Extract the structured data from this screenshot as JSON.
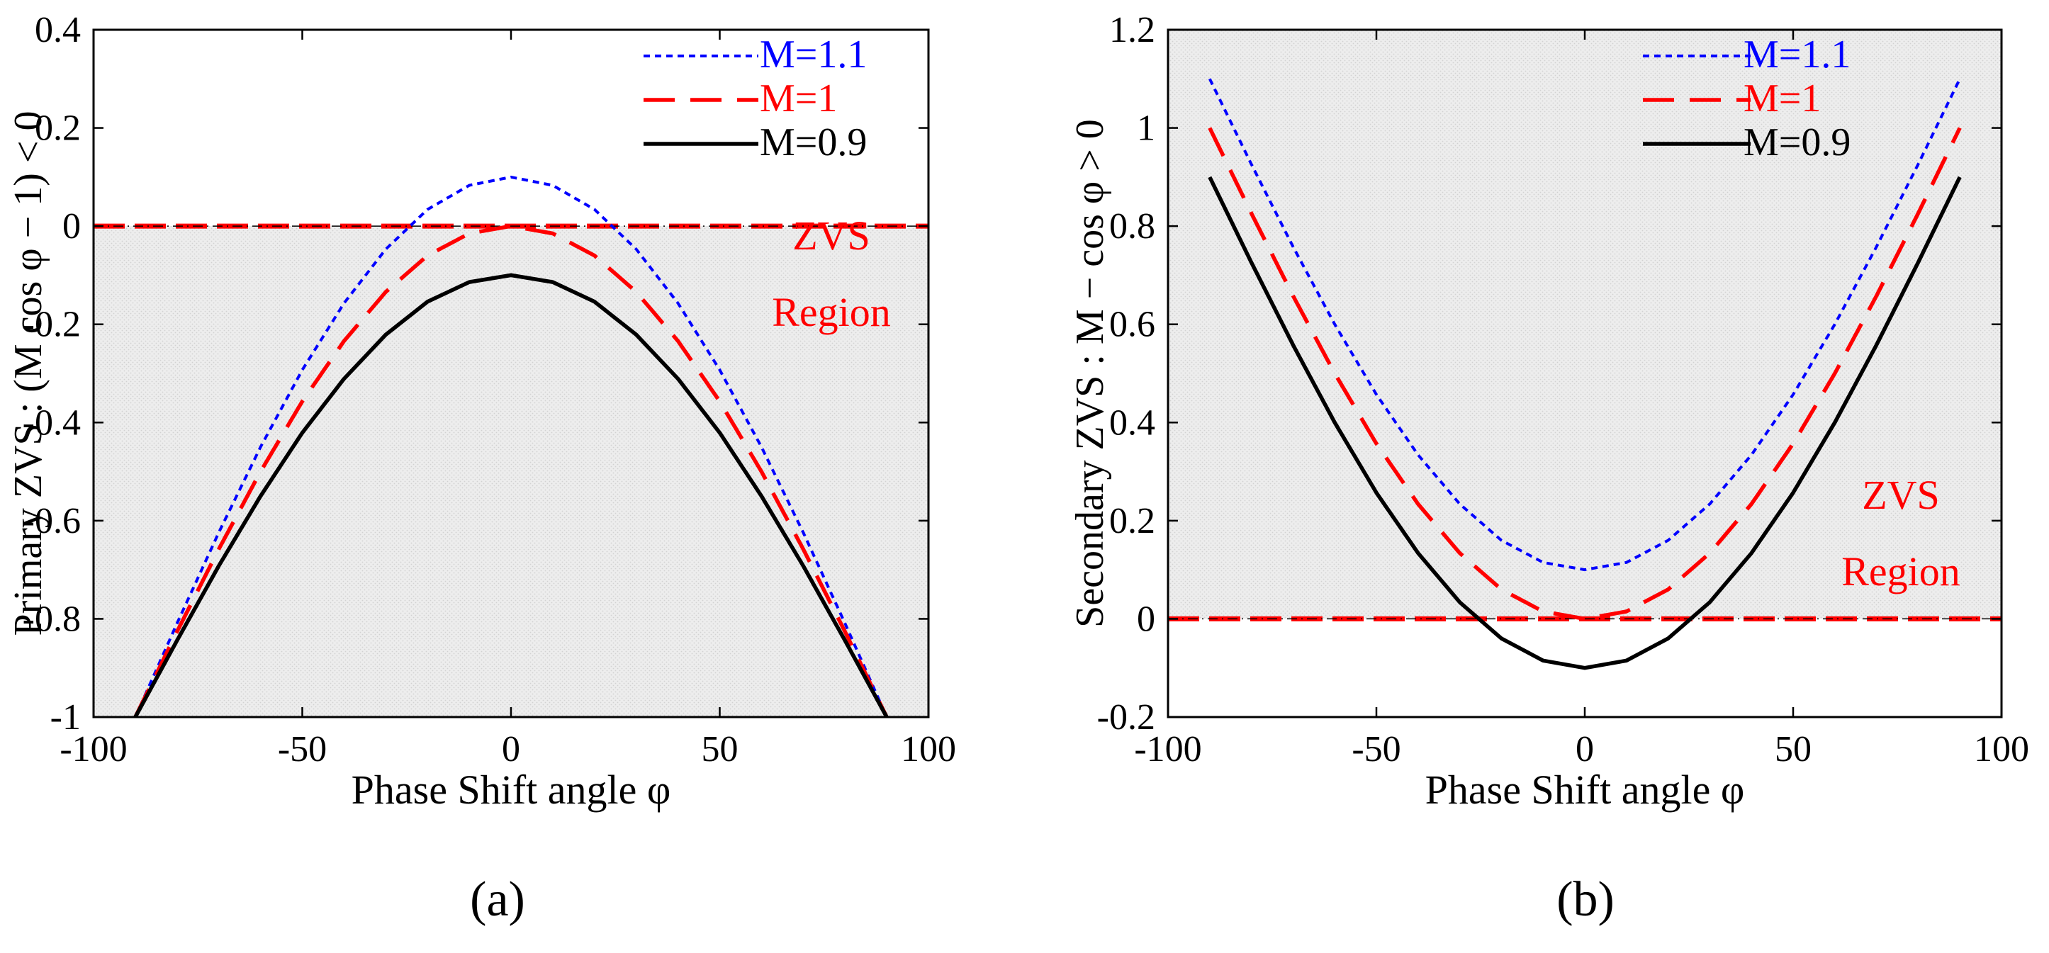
{
  "colors": {
    "m11": "#0000ff",
    "m1": "#ff0000",
    "m09": "#000000",
    "zvs_text": "#ff0000",
    "region_fill": "#e6e6e6",
    "axis": "#000000"
  },
  "chart_data": [
    {
      "panel": "a",
      "type": "line",
      "panel_label": "(a)",
      "title": "",
      "xlabel": "Phase Shift angle φ",
      "ylabel": "Primary ZVS : (M cos φ − 1) < 0",
      "xlim": [
        -100,
        100
      ],
      "ylim": [
        -1,
        0.4
      ],
      "xticks": [
        -100,
        -50,
        0,
        50,
        100
      ],
      "xtick_labels": [
        "-100",
        "-50",
        "0",
        "50",
        "100"
      ],
      "yticks": [
        -1,
        -0.8,
        -0.6,
        -0.4,
        -0.2,
        0,
        0.2,
        0.4
      ],
      "ytick_labels": [
        "-1",
        "-0.8",
        "-0.6",
        "-0.4",
        "-0.2",
        "0",
        "0.2",
        "0.4"
      ],
      "x": [
        -90,
        -80,
        -70,
        -60,
        -50,
        -40,
        -30,
        -20,
        -10,
        0,
        10,
        20,
        30,
        40,
        50,
        60,
        70,
        80,
        90
      ],
      "series": [
        {
          "name": "M=1.1",
          "color": "#0000ff",
          "style": "dotted",
          "values": [
            -1.0,
            -0.809,
            -0.624,
            -0.45,
            -0.293,
            -0.157,
            -0.047,
            0.034,
            0.083,
            0.1,
            0.083,
            0.034,
            -0.047,
            -0.157,
            -0.293,
            -0.45,
            -0.624,
            -0.809,
            -1.0
          ]
        },
        {
          "name": "M=1",
          "color": "#ff0000",
          "style": "dashed",
          "values": [
            -1.0,
            -0.826,
            -0.658,
            -0.5,
            -0.357,
            -0.234,
            -0.134,
            -0.06,
            -0.015,
            0.0,
            -0.015,
            -0.06,
            -0.134,
            -0.234,
            -0.357,
            -0.5,
            -0.658,
            -0.826,
            -1.0
          ]
        },
        {
          "name": "M=0.9",
          "color": "#000000",
          "style": "solid",
          "values": [
            -1.0,
            -0.844,
            -0.692,
            -0.55,
            -0.421,
            -0.311,
            -0.221,
            -0.154,
            -0.114,
            -0.1,
            -0.114,
            -0.154,
            -0.221,
            -0.311,
            -0.421,
            -0.55,
            -0.692,
            -0.844,
            -1.0
          ]
        }
      ],
      "boundary": {
        "y": 0,
        "color": "#ff0000",
        "style": "dash-dot"
      },
      "shaded_region": {
        "from": -1,
        "to": 0,
        "label": [
          "ZVS",
          "Region"
        ]
      },
      "legend": {
        "position": "top-right",
        "entries": [
          "M=1.1",
          "M=1",
          "M=0.9"
        ]
      },
      "grid": false
    },
    {
      "panel": "b",
      "type": "line",
      "panel_label": "(b)",
      "title": "",
      "xlabel": "Phase Shift angle φ",
      "ylabel": "Secondary ZVS : M − cos φ > 0",
      "xlim": [
        -100,
        100
      ],
      "ylim": [
        -0.2,
        1.2
      ],
      "xticks": [
        -100,
        -50,
        0,
        50,
        100
      ],
      "xtick_labels": [
        "-100",
        "-50",
        "0",
        "50",
        "100"
      ],
      "yticks": [
        -0.2,
        0,
        0.2,
        0.4,
        0.6,
        0.8,
        1,
        1.2
      ],
      "ytick_labels": [
        "-0.2",
        "0",
        "0.2",
        "0.4",
        "0.6",
        "0.8",
        "1",
        "1.2"
      ],
      "x": [
        -90,
        -80,
        -70,
        -60,
        -50,
        -40,
        -30,
        -20,
        -10,
        0,
        10,
        20,
        30,
        40,
        50,
        60,
        70,
        80,
        90
      ],
      "series": [
        {
          "name": "M=1.1",
          "color": "#0000ff",
          "style": "dotted",
          "values": [
            1.1,
            0.926,
            0.758,
            0.6,
            0.457,
            0.334,
            0.234,
            0.16,
            0.115,
            0.1,
            0.115,
            0.16,
            0.234,
            0.334,
            0.457,
            0.6,
            0.758,
            0.926,
            1.1
          ]
        },
        {
          "name": "M=1",
          "color": "#ff0000",
          "style": "dashed",
          "values": [
            1.0,
            0.826,
            0.658,
            0.5,
            0.357,
            0.234,
            0.134,
            0.06,
            0.015,
            0.0,
            0.015,
            0.06,
            0.134,
            0.234,
            0.357,
            0.5,
            0.658,
            0.826,
            1.0
          ]
        },
        {
          "name": "M=0.9",
          "color": "#000000",
          "style": "solid",
          "values": [
            0.9,
            0.726,
            0.558,
            0.4,
            0.257,
            0.134,
            0.034,
            -0.04,
            -0.085,
            -0.1,
            -0.085,
            -0.04,
            0.034,
            0.134,
            0.257,
            0.4,
            0.558,
            0.726,
            0.9
          ]
        }
      ],
      "boundary": {
        "y": 0,
        "color": "#ff0000",
        "style": "dash-dot"
      },
      "shaded_region": {
        "from": 0,
        "to": 1.2,
        "label": [
          "ZVS",
          "Region"
        ]
      },
      "legend": {
        "position": "top-right",
        "entries": [
          "M=1.1",
          "M=1",
          "M=0.9"
        ]
      },
      "grid": false
    }
  ]
}
